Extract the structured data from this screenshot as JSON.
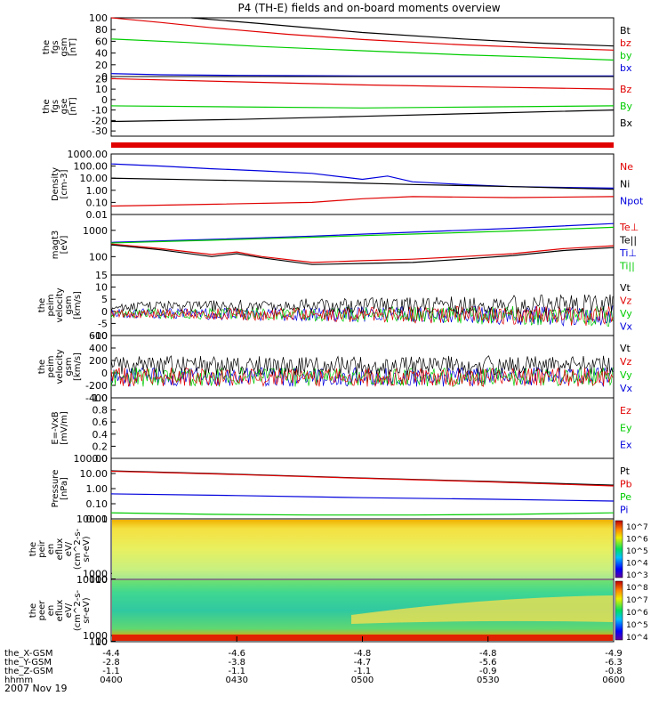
{
  "title": "P4 (TH-E) fields and on-board moments overview",
  "date_label": "2007 Nov 19",
  "colors": {
    "black": "#000000",
    "red": "#e00000",
    "green": "#00cc00",
    "blue": "#0000dd"
  },
  "chart_data": [
    {
      "type": "line",
      "id": "fgs_gsm",
      "ylabel": [
        "the",
        "fgs",
        "gsm",
        "[nT]"
      ],
      "ylim": [
        0,
        100
      ],
      "yticks": [
        "0",
        "20",
        "40",
        "60",
        "80",
        "100"
      ],
      "legend": [
        {
          "name": "Bt",
          "color": "black"
        },
        {
          "name": "bz",
          "color": "red"
        },
        {
          "name": "by",
          "color": "green"
        },
        {
          "name": "bx",
          "color": "blue"
        }
      ],
      "series": [
        {
          "name": "Bt",
          "color": "black",
          "x": [
            0.16,
            0.3,
            0.5,
            0.7,
            0.85,
            1.0
          ],
          "values": [
            100,
            90,
            75,
            64,
            57,
            52
          ]
        },
        {
          "name": "bz",
          "color": "red",
          "x": [
            0,
            0.1,
            0.2,
            0.35,
            0.5,
            0.7,
            0.85,
            1.0
          ],
          "values": [
            100,
            92,
            83,
            72,
            63,
            54,
            49,
            45
          ]
        },
        {
          "name": "by",
          "color": "green",
          "x": [
            0,
            0.15,
            0.3,
            0.5,
            0.7,
            0.85,
            1.0
          ],
          "values": [
            64,
            58,
            51,
            44,
            37,
            33,
            28
          ]
        },
        {
          "name": "bx",
          "color": "blue",
          "x": [
            0,
            0.1,
            0.25,
            0.5,
            1.0
          ],
          "values": [
            5,
            3,
            2,
            1,
            1
          ]
        }
      ]
    },
    {
      "type": "line",
      "id": "fgs_gse",
      "ylabel": [
        "the",
        "fgs",
        "gse",
        "[nT]"
      ],
      "ylim": [
        -35,
        22
      ],
      "yticks": [
        "-30",
        "-20",
        "-10",
        "0",
        "10",
        "20"
      ],
      "legend": [
        {
          "name": "Bz",
          "color": "red"
        },
        {
          "name": "By",
          "color": "green"
        },
        {
          "name": "Bx",
          "color": "black"
        }
      ],
      "series": [
        {
          "name": "Bz",
          "color": "red",
          "x": [
            0,
            0.25,
            0.5,
            0.75,
            1.0
          ],
          "values": [
            20,
            17,
            14,
            12,
            10
          ]
        },
        {
          "name": "By",
          "color": "green",
          "x": [
            0,
            0.25,
            0.5,
            0.75,
            1.0
          ],
          "values": [
            -6,
            -7,
            -8,
            -7,
            -6
          ]
        },
        {
          "name": "Bx",
          "color": "black",
          "x": [
            0,
            0.25,
            0.5,
            0.75,
            1.0
          ],
          "values": [
            -21,
            -19,
            -16,
            -13,
            -10
          ]
        }
      ]
    },
    {
      "type": "line",
      "id": "density",
      "log": true,
      "ylabel": [
        "Density",
        "[cm-3]"
      ],
      "ylim": [
        0.01,
        1000
      ],
      "yticks": [
        "0.01",
        "0.10",
        "1.00",
        "10.00",
        "100.00",
        "1000.00"
      ],
      "legend": [
        {
          "name": "Ne",
          "color": "red"
        },
        {
          "name": "Ni",
          "color": "black"
        },
        {
          "name": "Npot",
          "color": "blue"
        }
      ],
      "series": [
        {
          "name": "Npot",
          "color": "blue",
          "x": [
            0,
            0.1,
            0.2,
            0.3,
            0.4,
            0.5,
            0.55,
            0.6,
            0.7,
            0.8,
            1.0
          ],
          "values": [
            150,
            100,
            60,
            40,
            25,
            8,
            15,
            5,
            3,
            2,
            1.5
          ]
        },
        {
          "name": "Ni",
          "color": "black",
          "x": [
            0,
            0.2,
            0.4,
            0.6,
            0.8,
            1.0
          ],
          "values": [
            10,
            7,
            5,
            3,
            2,
            1.2
          ]
        },
        {
          "name": "Ne",
          "color": "red",
          "x": [
            0,
            0.2,
            0.4,
            0.5,
            0.6,
            0.8,
            1.0
          ],
          "values": [
            0.05,
            0.07,
            0.1,
            0.2,
            0.3,
            0.25,
            0.3
          ]
        }
      ]
    },
    {
      "type": "line",
      "id": "magt3",
      "log": true,
      "ylabel": [
        "magt3",
        "[eV]"
      ],
      "ylim": [
        20,
        4000
      ],
      "yticks": [
        "100",
        "1000"
      ],
      "legend": [
        {
          "name": "Te⊥",
          "color": "red"
        },
        {
          "name": "Te||",
          "color": "black"
        },
        {
          "name": "Ti⊥",
          "color": "blue"
        },
        {
          "name": "Ti||",
          "color": "green"
        }
      ],
      "series": [
        {
          "name": "Ti⊥",
          "color": "blue",
          "x": [
            0,
            0.2,
            0.4,
            0.6,
            0.8,
            1.0
          ],
          "values": [
            350,
            450,
            600,
            850,
            1200,
            1800
          ]
        },
        {
          "name": "Ti||",
          "color": "green",
          "x": [
            0,
            0.2,
            0.4,
            0.6,
            0.8,
            1.0
          ],
          "values": [
            330,
            420,
            550,
            720,
            950,
            1300
          ]
        },
        {
          "name": "Te⊥",
          "color": "red",
          "x": [
            0,
            0.1,
            0.2,
            0.25,
            0.3,
            0.4,
            0.5,
            0.6,
            0.7,
            0.8,
            0.9,
            1.0
          ],
          "values": [
            300,
            200,
            120,
            150,
            100,
            60,
            70,
            80,
            100,
            130,
            200,
            260
          ]
        },
        {
          "name": "Te||",
          "color": "black",
          "x": [
            0,
            0.1,
            0.2,
            0.25,
            0.3,
            0.4,
            0.5,
            0.6,
            0.7,
            0.8,
            0.9,
            1.0
          ],
          "values": [
            280,
            180,
            100,
            130,
            90,
            50,
            55,
            60,
            80,
            110,
            170,
            220
          ]
        }
      ]
    },
    {
      "type": "line",
      "id": "peim_v1",
      "noisy": true,
      "ylabel": [
        "the",
        "peim",
        "velocity",
        "gsm",
        "[km/s]"
      ],
      "ylim": [
        -10,
        15
      ],
      "yticks": [
        "-10",
        "-5",
        "0",
        "5",
        "10",
        "15"
      ],
      "legend": [
        {
          "name": "Vt",
          "color": "black"
        },
        {
          "name": "Vz",
          "color": "red"
        },
        {
          "name": "Vy",
          "color": "green"
        },
        {
          "name": "Vx",
          "color": "blue"
        }
      ]
    },
    {
      "type": "line",
      "id": "peim_v2",
      "noisy": true,
      "ylabel": [
        "the",
        "peim",
        "velocity",
        "gsm",
        "[km/s]"
      ],
      "ylim": [
        -400,
        600
      ],
      "yticks": [
        "-400",
        "-200",
        "0",
        "200",
        "400",
        "600"
      ],
      "legend": [
        {
          "name": "Vt",
          "color": "black"
        },
        {
          "name": "Vz",
          "color": "red"
        },
        {
          "name": "Vy",
          "color": "green"
        },
        {
          "name": "Vx",
          "color": "blue"
        }
      ]
    },
    {
      "type": "line",
      "id": "efield",
      "ylabel": [
        "E=-VxB",
        "[mV/m]"
      ],
      "ylim": [
        0,
        1
      ],
      "yticks": [
        "0.0",
        "0.2",
        "0.4",
        "0.6",
        "0.8",
        "1.0"
      ],
      "legend": [
        {
          "name": "Ez",
          "color": "red"
        },
        {
          "name": "Ey",
          "color": "green"
        },
        {
          "name": "Ex",
          "color": "blue"
        }
      ]
    },
    {
      "type": "line",
      "id": "pressure",
      "log": true,
      "ylabel": [
        "Pressure",
        "[nPa]"
      ],
      "ylim": [
        0.01,
        100
      ],
      "yticks": [
        "0.01",
        "0.10",
        "1.00",
        "10.00",
        "100.00"
      ],
      "legend": [
        {
          "name": "Pt",
          "color": "black"
        },
        {
          "name": "Pb",
          "color": "red"
        },
        {
          "name": "Pe",
          "color": "green"
        },
        {
          "name": "Pi",
          "color": "blue"
        }
      ],
      "series": [
        {
          "name": "Pt",
          "color": "black",
          "x": [
            0,
            0.25,
            0.5,
            0.75,
            1.0
          ],
          "values": [
            15,
            9,
            5,
            3,
            1.7
          ]
        },
        {
          "name": "Pb",
          "color": "red",
          "x": [
            0,
            0.25,
            0.5,
            0.75,
            1.0
          ],
          "values": [
            14,
            8.5,
            4.8,
            2.8,
            1.5
          ]
        },
        {
          "name": "Pi",
          "color": "blue",
          "x": [
            0,
            0.25,
            0.5,
            0.75,
            1.0
          ],
          "values": [
            0.45,
            0.35,
            0.25,
            0.2,
            0.15
          ]
        },
        {
          "name": "Pe",
          "color": "green",
          "x": [
            0,
            0.2,
            0.4,
            0.6,
            0.8,
            1.0
          ],
          "values": [
            0.025,
            0.02,
            0.018,
            0.018,
            0.02,
            0.025
          ]
        }
      ]
    },
    {
      "type": "heatmap",
      "id": "peir",
      "ylabel": [
        "the",
        "peir",
        "en",
        "eflux",
        "eV/",
        "(cm^2-s-",
        "sr-eV)"
      ],
      "ylim": [
        10,
        10000
      ],
      "yticks": [
        "10",
        "100",
        "1000",
        "10000"
      ],
      "colorbar": [
        "10^3",
        "10^4",
        "10^5",
        "10^6",
        "10^7"
      ]
    },
    {
      "type": "heatmap",
      "id": "peer",
      "ylabel": [
        "the",
        "peer",
        "en",
        "eflux",
        "eV/",
        "(cm^2-s-",
        "sr-eV)"
      ],
      "ylim": [
        10,
        10000
      ],
      "yticks": [
        "10",
        "100",
        "1000",
        "10000"
      ],
      "colorbar": [
        "10^4",
        "10^5",
        "10^6",
        "10^7",
        "10^8"
      ]
    }
  ],
  "x_axis": {
    "row_labels": [
      "the_X-GSM",
      "the_Y-GSM",
      "the_Z-GSM",
      "hhmm"
    ],
    "columns": [
      [
        "-4.4",
        "-2.8",
        "-1.1",
        "0400"
      ],
      [
        "-4.6",
        "-3.8",
        "-1.1",
        "0430"
      ],
      [
        "-4.8",
        "-4.7",
        "-1.1",
        "0500"
      ],
      [
        "-4.8",
        "-5.6",
        "-0.9",
        "0530"
      ],
      [
        "-4.9",
        "-6.3",
        "-0.8",
        "0600"
      ]
    ]
  }
}
